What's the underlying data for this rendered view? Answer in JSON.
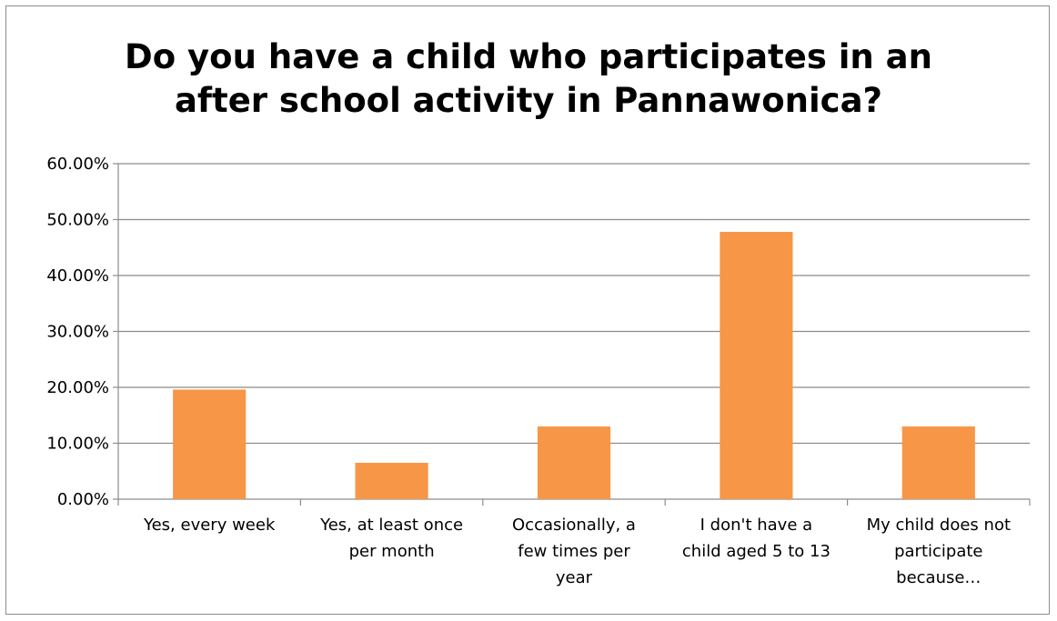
{
  "chart_data": {
    "type": "bar",
    "title_lines": [
      "Do you have a child who participates in an",
      "after school activity in Pannawonica?"
    ],
    "categories": [
      [
        "Yes, every week"
      ],
      [
        "Yes, at least once",
        "per month"
      ],
      [
        "Occasionally, a",
        "few times per",
        "year"
      ],
      [
        "I don't have a",
        "child aged 5 to 13"
      ],
      [
        "My child does not",
        "participate",
        "because…"
      ]
    ],
    "values": [
      0.196,
      0.065,
      0.13,
      0.478,
      0.13
    ],
    "ylim": [
      0,
      0.6
    ],
    "yticks": [
      0,
      0.1,
      0.2,
      0.3,
      0.4,
      0.5,
      0.6
    ],
    "ytick_labels": [
      "0.00%",
      "10.00%",
      "20.00%",
      "30.00%",
      "40.00%",
      "50.00%",
      "60.00%"
    ],
    "grid": true,
    "legend": "none",
    "bar_color": "#f79646",
    "grid_color": "#8c8c8c"
  }
}
